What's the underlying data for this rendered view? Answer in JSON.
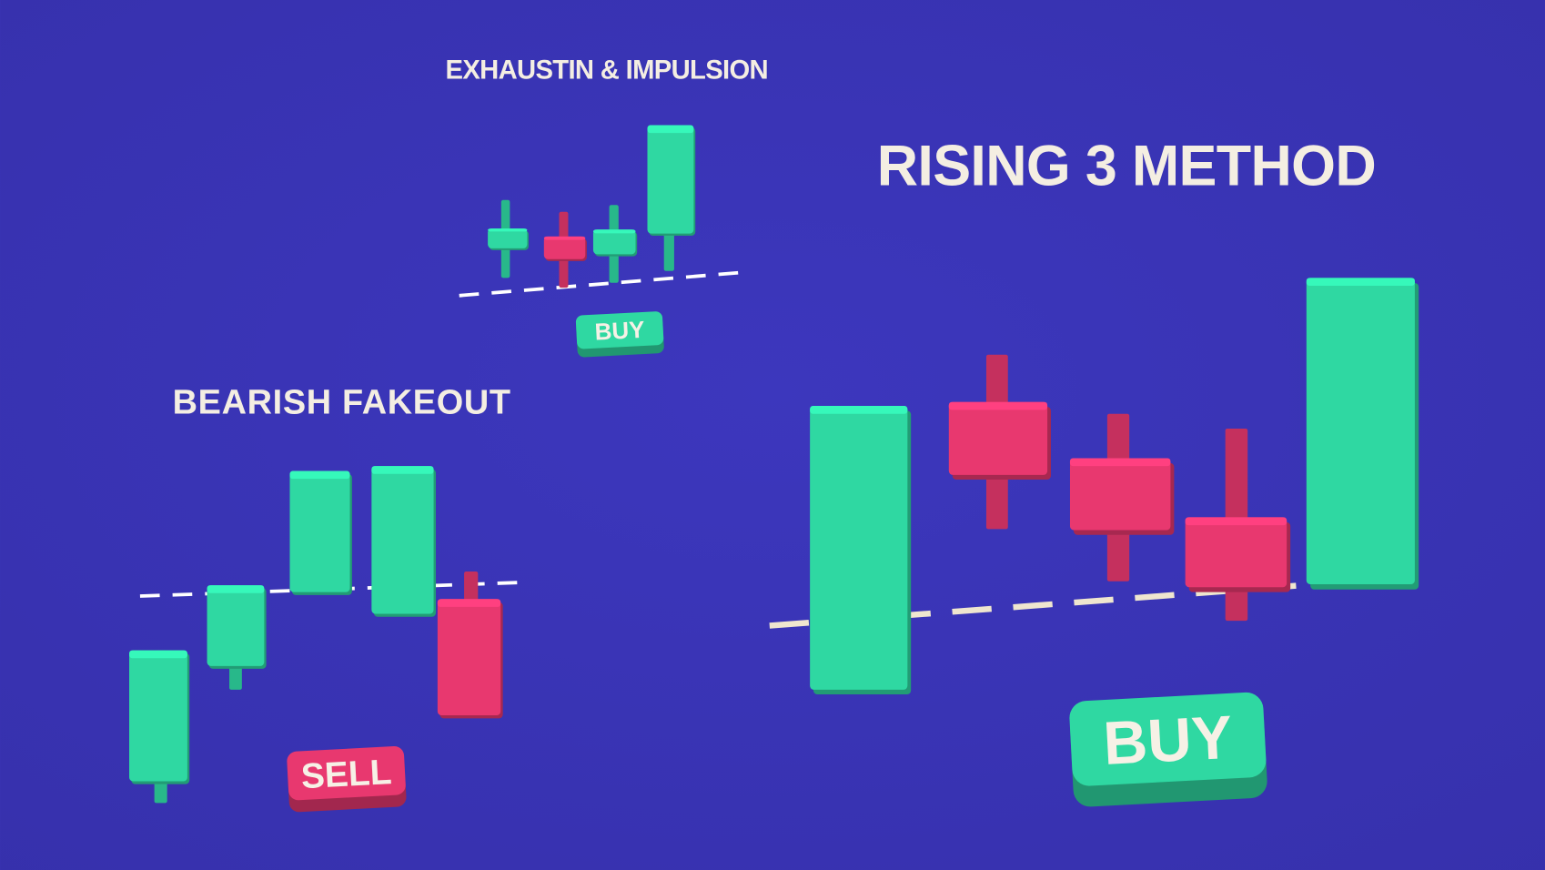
{
  "colors": {
    "background": "#3b35b6",
    "bullish": "#2fd8a2",
    "bearish": "#e8386f",
    "text": "#f4eee2"
  },
  "panels": [
    {
      "title": "EXHAUSTIN & IMPULSION",
      "signal": "BUY",
      "candles": [
        "bullish",
        "bearish",
        "bullish",
        "bullish"
      ]
    },
    {
      "title": "BEARISH FAKEOUT",
      "signal": "SELL",
      "candles": [
        "bullish",
        "bullish",
        "bullish",
        "bullish",
        "bearish"
      ]
    },
    {
      "title": "RISING 3 METHOD",
      "signal": "BUY",
      "candles": [
        "bullish",
        "bearish",
        "bearish",
        "bearish",
        "bullish"
      ]
    }
  ]
}
